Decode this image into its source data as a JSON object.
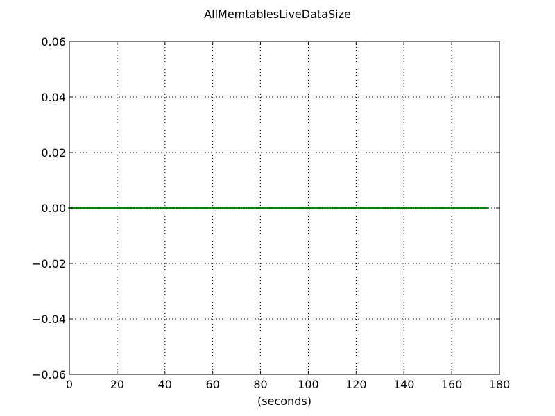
{
  "chart_data": {
    "type": "line",
    "title": "AllMemtablesLiveDataSize",
    "xlabel": "(seconds)",
    "ylabel": "",
    "xlim": [
      0,
      180
    ],
    "ylim": [
      -0.06,
      0.06
    ],
    "x_ticks": [
      0,
      20,
      40,
      60,
      80,
      100,
      120,
      140,
      160,
      180
    ],
    "y_ticks": [
      -0.06,
      -0.04,
      -0.02,
      0.0,
      0.02,
      0.04,
      0.06
    ],
    "x_tick_labels": [
      "0",
      "20",
      "40",
      "60",
      "80",
      "100",
      "120",
      "140",
      "160",
      "180"
    ],
    "y_tick_labels": [
      "−0.06",
      "−0.04",
      "−0.02",
      "0.00",
      "0.02",
      "0.04",
      "0.06"
    ],
    "grid": true,
    "series": [
      {
        "color": "#007a00",
        "marker": "dot",
        "x_start": 0,
        "x_end": 175,
        "x_step": 1,
        "y_constant": 0
      }
    ]
  }
}
